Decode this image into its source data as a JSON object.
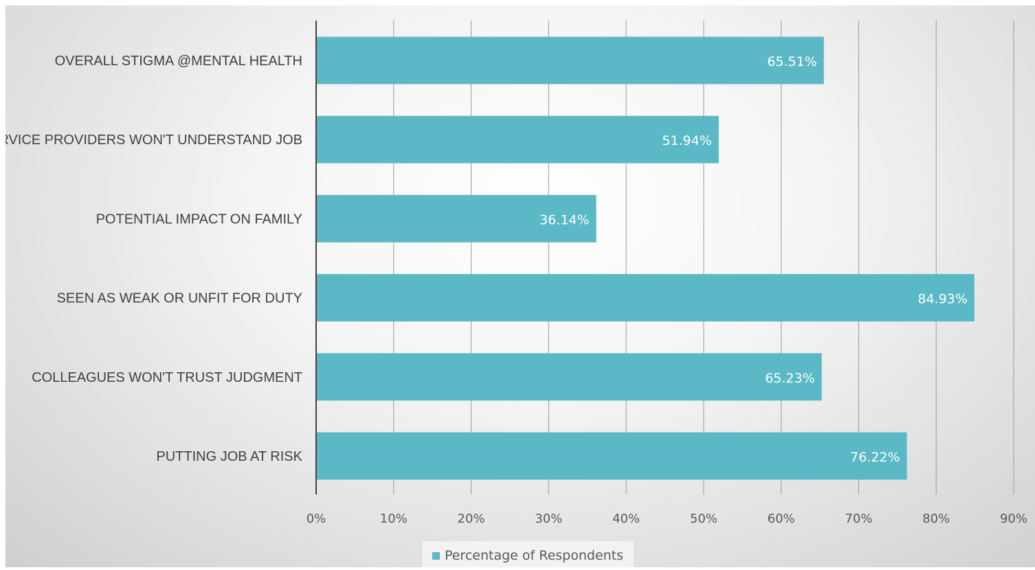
{
  "chart_data": {
    "type": "bar",
    "orientation": "horizontal",
    "categories": [
      "OVERALL STIGMA @MENTAL HEALTH",
      "SERVICE PROVIDERS WON'T UNDERSTAND JOB",
      "POTENTIAL IMPACT ON FAMILY",
      "SEEN AS WEAK OR UNFIT FOR DUTY",
      "COLLEAGUES WON'T TRUST JUDGMENT",
      "PUTTING JOB AT RISK"
    ],
    "series": [
      {
        "name": "Percentage of Respondents",
        "values": [
          65.51,
          51.94,
          36.14,
          84.93,
          65.23,
          76.22
        ],
        "data_labels": [
          "65.51%",
          "51.94%",
          "36.14%",
          "84.93%",
          "65.23%",
          "76.22%"
        ]
      }
    ],
    "xlim": [
      0,
      90
    ],
    "x_ticks": [
      "0%",
      "10%",
      "20%",
      "30%",
      "40%",
      "50%",
      "60%",
      "70%",
      "80%",
      "90%"
    ],
    "grid": "vertical",
    "legend_position": "bottom",
    "title": "",
    "xlabel": "",
    "ylabel": ""
  },
  "colors": {
    "bar": "#5bb8c6",
    "gridline": "#9a9a9a",
    "axis": "#404040"
  },
  "legend": {
    "label": "Percentage of Respondents"
  }
}
